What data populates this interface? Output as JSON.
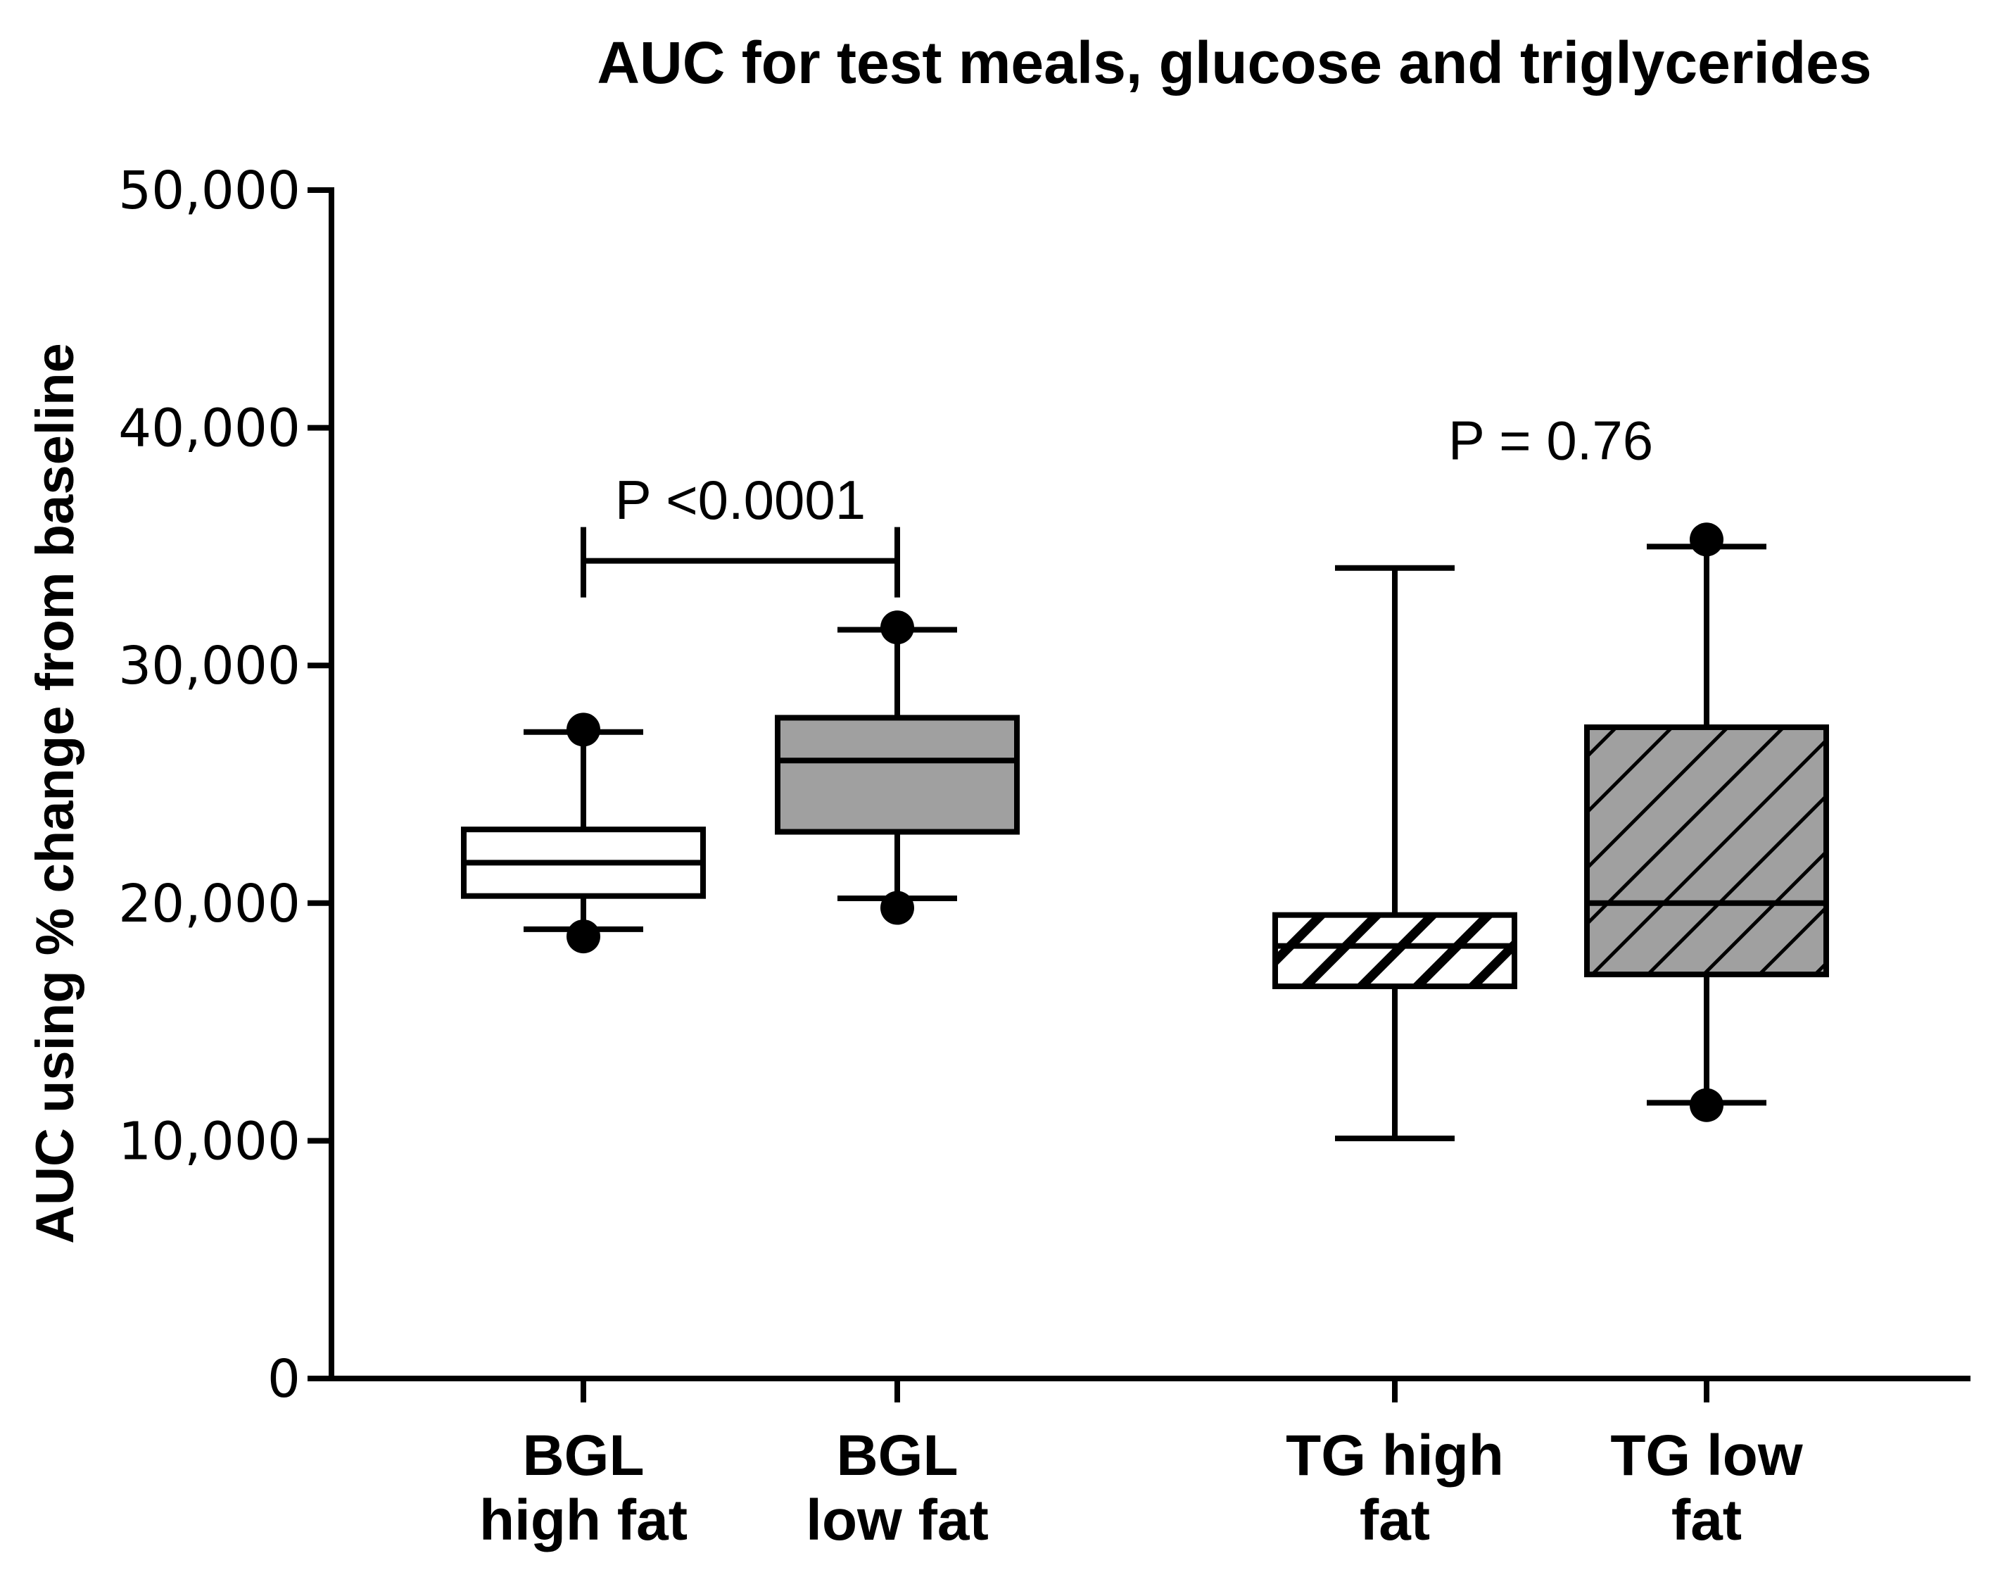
{
  "chart_data": {
    "type": "box",
    "title": "AUC for test meals, glucose and triglycerides",
    "xlabel": "",
    "ylabel": "AUC using % change from baseline",
    "ylim": [
      0,
      50000
    ],
    "yticks": [
      0,
      10000,
      20000,
      30000,
      40000,
      50000
    ],
    "ytick_labels": [
      "0",
      "10,000",
      "20,000",
      "30,000",
      "40,000",
      "50,000"
    ],
    "boxes": [
      {
        "key": "bgl-high-fat",
        "label_lines": [
          "BGL",
          "high fat"
        ],
        "min": 18900,
        "q1": 20300,
        "median": 21700,
        "q3": 23100,
        "max": 27200,
        "outlier_points": [
          18600,
          27300
        ],
        "fill": "#ffffff",
        "pattern": "none"
      },
      {
        "key": "bgl-low-fat",
        "label_lines": [
          "BGL",
          "low fat"
        ],
        "min": 20200,
        "q1": 23000,
        "median": 26000,
        "q3": 27800,
        "max": 31500,
        "outlier_points": [
          19800,
          31600
        ],
        "fill": "#a0a0a0",
        "pattern": "none"
      },
      {
        "key": "tg-high-fat",
        "label_lines": [
          "TG high",
          "fat"
        ],
        "min": 10100,
        "q1": 16500,
        "median": 18200,
        "q3": 19500,
        "max": 34100,
        "outlier_points": [],
        "fill": "#ffffff",
        "pattern": "hatch"
      },
      {
        "key": "tg-low-fat",
        "label_lines": [
          "TG low",
          "fat"
        ],
        "min": 11600,
        "q1": 17000,
        "median": 20000,
        "q3": 27400,
        "max": 35000,
        "outlier_points": [
          11500,
          35300
        ],
        "fill": "#a0a0a0",
        "pattern": "hatch"
      }
    ],
    "annotations": [
      {
        "key": "bgl-p",
        "text": "P <0.0001",
        "between": [
          0,
          1
        ],
        "bracket": true,
        "bracket_value": 34400,
        "text_value": 37000
      },
      {
        "key": "tg-p",
        "text": "P = 0.76",
        "between": [
          2,
          3
        ],
        "bracket": false,
        "text_value": 39500
      }
    ],
    "colors": {
      "axis": "#000000",
      "grey_fill": "#a0a0a0",
      "white_fill": "#ffffff"
    }
  }
}
